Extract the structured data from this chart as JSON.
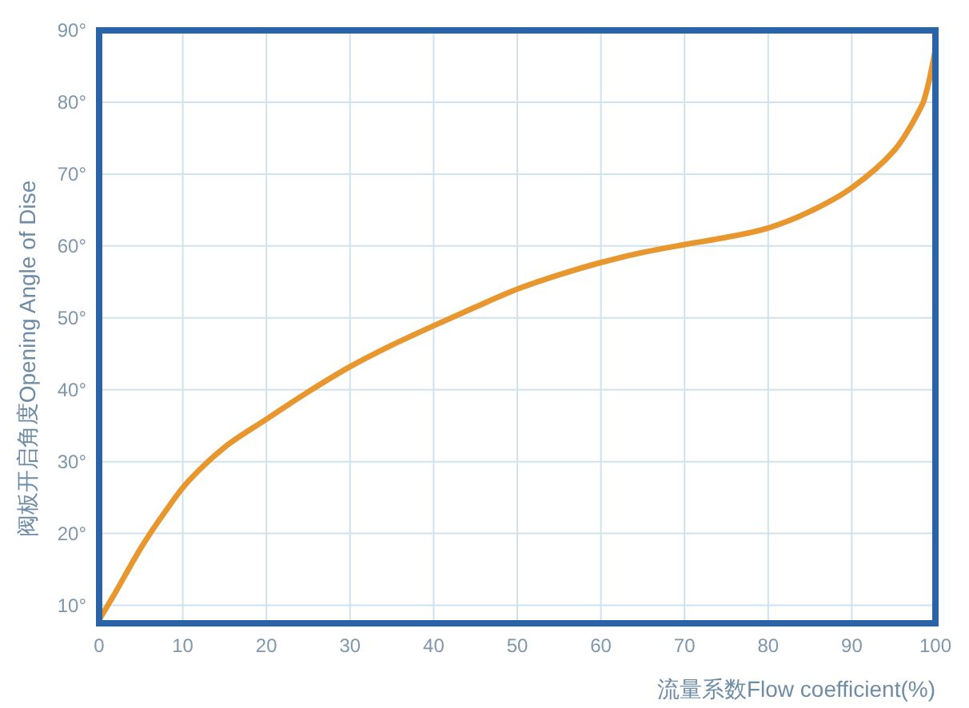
{
  "chart_data": {
    "type": "line",
    "xlabel": "流量系数Flow coefficient(%)",
    "ylabel": "阀板开启角度Opening Angle of Dise",
    "x": [
      0,
      2,
      5,
      8,
      10.7,
      15,
      20,
      25,
      30,
      35,
      40,
      45,
      50,
      55,
      60,
      65,
      70,
      75,
      80,
      85,
      90,
      95,
      98,
      99,
      100
    ],
    "series": [
      {
        "color": "#e8962e",
        "values": [
          8.0,
          11.9,
          18.0,
          23.2,
          27.3,
          32.0,
          35.9,
          39.7,
          43.2,
          46.2,
          48.9,
          51.5,
          54.0,
          56.0,
          57.7,
          59.1,
          60.2,
          61.2,
          62.5,
          64.8,
          68.1,
          73.2,
          78.7,
          81.8,
          87.3
        ]
      }
    ],
    "xlim": [
      0,
      100
    ],
    "xticks": [
      0,
      10,
      20,
      30,
      40,
      50,
      60,
      70,
      80,
      90,
      100
    ],
    "ylim": [
      7.5,
      90
    ],
    "yticks": [
      {
        "value": 10,
        "label": "10°"
      },
      {
        "value": 20,
        "label": "20°"
      },
      {
        "value": 30,
        "label": "30°"
      },
      {
        "value": 40,
        "label": "40°"
      },
      {
        "value": 50,
        "label": "50°"
      },
      {
        "value": 60,
        "label": "60°"
      },
      {
        "value": 70,
        "label": "70°"
      },
      {
        "value": 80,
        "label": "80°"
      },
      {
        "value": 90,
        "label": "90°"
      }
    ],
    "grid": true,
    "marker": "none",
    "line_style": "solid"
  }
}
